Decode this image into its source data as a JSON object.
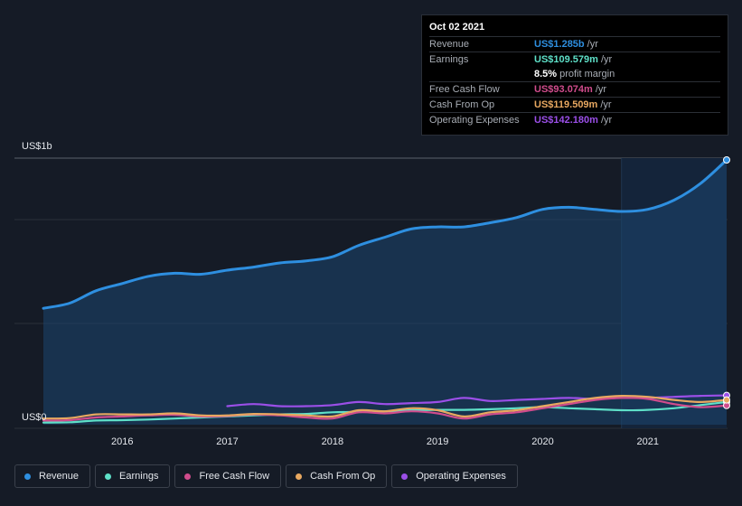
{
  "chart_data": {
    "type": "line",
    "y_top_label": "US$1b",
    "y_bottom_label": "US$0",
    "ylim": [
      0,
      1.285
    ],
    "xlim": [
      2015.25,
      2021.75
    ],
    "x_ticks": [
      2016,
      2017,
      2018,
      2019,
      2020,
      2021
    ],
    "x_tick_labels": [
      "2016",
      "2017",
      "2018",
      "2019",
      "2020",
      "2021"
    ],
    "grid": true,
    "legend_position": "bottom",
    "series": [
      {
        "name": "Revenue",
        "color": "#2e8fe0",
        "fill": true,
        "points": [
          [
            2015.25,
            0.565
          ],
          [
            2015.5,
            0.59
          ],
          [
            2015.75,
            0.65
          ],
          [
            2016.0,
            0.685
          ],
          [
            2016.25,
            0.72
          ],
          [
            2016.5,
            0.735
          ],
          [
            2016.75,
            0.73
          ],
          [
            2017.0,
            0.75
          ],
          [
            2017.25,
            0.765
          ],
          [
            2017.5,
            0.785
          ],
          [
            2017.75,
            0.795
          ],
          [
            2018.0,
            0.815
          ],
          [
            2018.25,
            0.87
          ],
          [
            2018.5,
            0.91
          ],
          [
            2018.75,
            0.95
          ],
          [
            2019.0,
            0.96
          ],
          [
            2019.25,
            0.96
          ],
          [
            2019.5,
            0.98
          ],
          [
            2019.75,
            1.005
          ],
          [
            2020.0,
            1.045
          ],
          [
            2020.25,
            1.055
          ],
          [
            2020.5,
            1.045
          ],
          [
            2020.75,
            1.035
          ],
          [
            2021.0,
            1.045
          ],
          [
            2021.25,
            1.09
          ],
          [
            2021.5,
            1.17
          ],
          [
            2021.75,
            1.285
          ]
        ]
      },
      {
        "name": "Earnings",
        "color": "#5ee0c8",
        "points": [
          [
            2015.25,
            0.01
          ],
          [
            2015.5,
            0.012
          ],
          [
            2015.75,
            0.02
          ],
          [
            2016.0,
            0.022
          ],
          [
            2016.25,
            0.025
          ],
          [
            2016.5,
            0.03
          ],
          [
            2016.75,
            0.035
          ],
          [
            2017.0,
            0.04
          ],
          [
            2017.25,
            0.045
          ],
          [
            2017.5,
            0.05
          ],
          [
            2017.75,
            0.052
          ],
          [
            2018.0,
            0.06
          ],
          [
            2018.25,
            0.062
          ],
          [
            2018.5,
            0.065
          ],
          [
            2018.75,
            0.07
          ],
          [
            2019.0,
            0.072
          ],
          [
            2019.25,
            0.072
          ],
          [
            2019.5,
            0.075
          ],
          [
            2019.75,
            0.08
          ],
          [
            2020.0,
            0.085
          ],
          [
            2020.25,
            0.08
          ],
          [
            2020.5,
            0.075
          ],
          [
            2020.75,
            0.07
          ],
          [
            2021.0,
            0.072
          ],
          [
            2021.25,
            0.08
          ],
          [
            2021.5,
            0.095
          ],
          [
            2021.75,
            0.11
          ]
        ]
      },
      {
        "name": "Free Cash Flow",
        "color": "#d04c8c",
        "points": [
          [
            2015.25,
            0.02
          ],
          [
            2015.5,
            0.022
          ],
          [
            2015.75,
            0.035
          ],
          [
            2016.0,
            0.04
          ],
          [
            2016.25,
            0.045
          ],
          [
            2016.5,
            0.048
          ],
          [
            2016.75,
            0.04
          ],
          [
            2017.0,
            0.042
          ],
          [
            2017.25,
            0.05
          ],
          [
            2017.5,
            0.045
          ],
          [
            2017.75,
            0.035
          ],
          [
            2018.0,
            0.03
          ],
          [
            2018.25,
            0.06
          ],
          [
            2018.5,
            0.055
          ],
          [
            2018.75,
            0.065
          ],
          [
            2019.0,
            0.055
          ],
          [
            2019.25,
            0.03
          ],
          [
            2019.5,
            0.05
          ],
          [
            2019.75,
            0.06
          ],
          [
            2020.0,
            0.08
          ],
          [
            2020.25,
            0.1
          ],
          [
            2020.5,
            0.12
          ],
          [
            2020.75,
            0.13
          ],
          [
            2021.0,
            0.125
          ],
          [
            2021.25,
            0.1
          ],
          [
            2021.5,
            0.085
          ],
          [
            2021.75,
            0.093
          ]
        ]
      },
      {
        "name": "Cash From Op",
        "color": "#e8a860",
        "points": [
          [
            2015.25,
            0.03
          ],
          [
            2015.5,
            0.032
          ],
          [
            2015.75,
            0.05
          ],
          [
            2016.0,
            0.05
          ],
          [
            2016.25,
            0.05
          ],
          [
            2016.5,
            0.055
          ],
          [
            2016.75,
            0.045
          ],
          [
            2017.0,
            0.045
          ],
          [
            2017.25,
            0.052
          ],
          [
            2017.5,
            0.05
          ],
          [
            2017.75,
            0.045
          ],
          [
            2018.0,
            0.04
          ],
          [
            2018.25,
            0.07
          ],
          [
            2018.5,
            0.065
          ],
          [
            2018.75,
            0.08
          ],
          [
            2019.0,
            0.07
          ],
          [
            2019.25,
            0.04
          ],
          [
            2019.5,
            0.06
          ],
          [
            2019.75,
            0.07
          ],
          [
            2020.0,
            0.09
          ],
          [
            2020.25,
            0.11
          ],
          [
            2020.5,
            0.13
          ],
          [
            2020.75,
            0.14
          ],
          [
            2021.0,
            0.135
          ],
          [
            2021.25,
            0.12
          ],
          [
            2021.5,
            0.11
          ],
          [
            2021.75,
            0.12
          ]
        ]
      },
      {
        "name": "Operating Expenses",
        "color": "#9b4fe8",
        "points": [
          [
            2017.0,
            0.09
          ],
          [
            2017.25,
            0.1
          ],
          [
            2017.5,
            0.09
          ],
          [
            2017.75,
            0.09
          ],
          [
            2018.0,
            0.095
          ],
          [
            2018.25,
            0.11
          ],
          [
            2018.5,
            0.1
          ],
          [
            2018.75,
            0.105
          ],
          [
            2019.0,
            0.11
          ],
          [
            2019.25,
            0.13
          ],
          [
            2019.5,
            0.115
          ],
          [
            2019.75,
            0.12
          ],
          [
            2020.0,
            0.125
          ],
          [
            2020.25,
            0.13
          ],
          [
            2020.5,
            0.125
          ],
          [
            2020.75,
            0.13
          ],
          [
            2021.0,
            0.13
          ],
          [
            2021.25,
            0.135
          ],
          [
            2021.5,
            0.14
          ],
          [
            2021.75,
            0.142
          ]
        ]
      }
    ],
    "highlight_from_x": 2020.75,
    "tooltip": {
      "date": "Oct 02 2021",
      "rows": [
        {
          "label": "Revenue",
          "value": "US$1.285b",
          "unit": "/yr",
          "color": "#2e8fe0"
        },
        {
          "label": "Earnings",
          "value": "US$109.579m",
          "unit": "/yr",
          "color": "#5ee0c8"
        },
        {
          "label": "",
          "value": "8.5%",
          "unit": "profit margin",
          "color": "#ffffff"
        },
        {
          "label": "Free Cash Flow",
          "value": "US$93.074m",
          "unit": "/yr",
          "color": "#d04c8c"
        },
        {
          "label": "Cash From Op",
          "value": "US$119.509m",
          "unit": "/yr",
          "color": "#e8a860"
        },
        {
          "label": "Operating Expenses",
          "value": "US$142.180m",
          "unit": "/yr",
          "color": "#9b4fe8"
        }
      ]
    }
  }
}
